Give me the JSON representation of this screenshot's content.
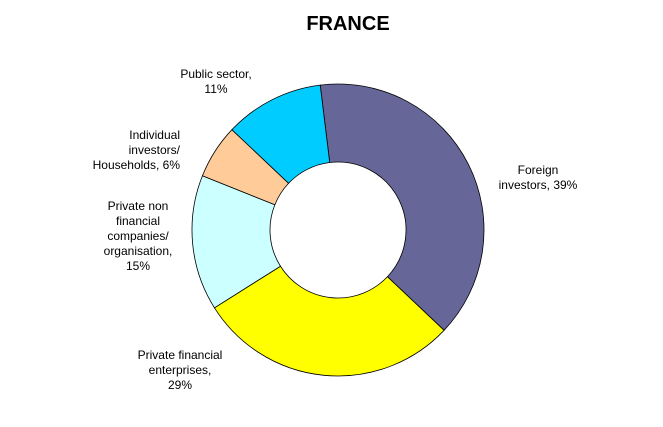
{
  "chart_data": {
    "type": "pie",
    "variant": "donut",
    "title": "FRANCE",
    "start_angle_deg": -7,
    "direction": "clockwise",
    "legend": "none",
    "slices": [
      {
        "category": "Foreign investors",
        "value": 39,
        "color": "#666699",
        "label_lines": [
          "Foreign",
          "investors, 39%"
        ],
        "label_align": "middle"
      },
      {
        "category": "Private financial enterprises",
        "value": 29,
        "color": "#ffff00",
        "label_lines": [
          "Private financial",
          "enterprises,",
          "29%"
        ],
        "label_align": "middle"
      },
      {
        "category": "Private non financial companies/ organisation",
        "value": 15,
        "color": "#ccffff",
        "label_lines": [
          "Private non",
          "financial",
          "companies/",
          "organisation,",
          "15%"
        ],
        "label_align": "middle"
      },
      {
        "category": "Individual investors/ Households",
        "value": 6,
        "color": "#ffcc99",
        "label_lines": [
          "Individual",
          "investors/",
          "Households, 6%"
        ],
        "label_align": "end"
      },
      {
        "category": "Public sector",
        "value": 11,
        "color": "#00ccff",
        "label_lines": [
          "Public sector,",
          "11%"
        ],
        "label_align": "middle"
      }
    ]
  }
}
